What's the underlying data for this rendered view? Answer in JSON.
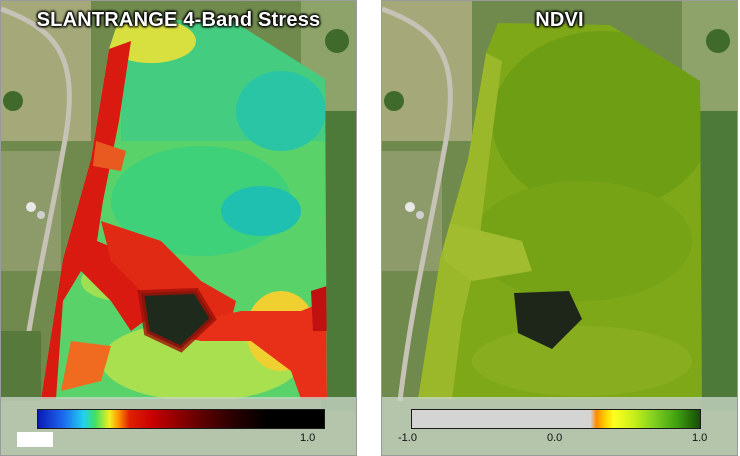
{
  "panels": [
    {
      "title": "SLANTRANGE 4-Band Stress",
      "legend": {
        "max_label": "1.0",
        "colors": [
          "#0a1ab4",
          "#20d2f0",
          "#40e060",
          "#f0f020",
          "#ff9a00",
          "#c80000",
          "#000000"
        ]
      }
    },
    {
      "title": "NDVI",
      "legend": {
        "min_label": "-1.0",
        "mid_label": "0.0",
        "max_label": "1.0",
        "colors": [
          "#d4d4d4",
          "#ff8a00",
          "#ffff20",
          "#80d020",
          "#164c06"
        ]
      }
    }
  ]
}
